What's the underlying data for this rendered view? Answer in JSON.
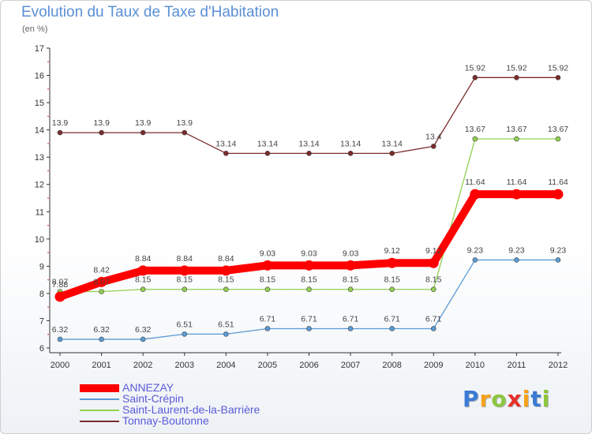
{
  "chart_data": {
    "type": "line",
    "title": "Evolution du Taux de Taxe d'Habitation",
    "subtitle": "(en %)",
    "x": [
      "2000",
      "2001",
      "2002",
      "2003",
      "2004",
      "2005",
      "2006",
      "2007",
      "2008",
      "2009",
      "2010",
      "2011",
      "2012"
    ],
    "ylim": [
      6,
      17
    ],
    "yticks": [
      6,
      7,
      8,
      9,
      10,
      11,
      12,
      13,
      14,
      15,
      16,
      17
    ],
    "grid": false,
    "legend_position": "bottom-left",
    "series": [
      {
        "name": "ANNEZAY",
        "color": "#ff0000",
        "values": [
          7.88,
          8.42,
          8.84,
          8.84,
          8.84,
          9.03,
          9.03,
          9.03,
          9.12,
          9.12,
          11.64,
          11.64,
          11.64
        ],
        "labels": [
          "7.88",
          "8.42",
          "8.84",
          "8.84",
          "8.84",
          "9.03",
          "9.03",
          "9.03",
          "9.12",
          "9.12",
          "11.64",
          "11.64",
          "11.64"
        ]
      },
      {
        "name": "Saint-Crépin",
        "color": "#5a9bd5",
        "values": [
          6.32,
          6.32,
          6.32,
          6.51,
          6.51,
          6.71,
          6.71,
          6.71,
          6.71,
          6.71,
          9.23,
          9.23,
          9.23
        ],
        "labels": [
          "6.32",
          "6.32",
          "6.32",
          "6.51",
          "6.51",
          "6.71",
          "6.71",
          "6.71",
          "6.71",
          "6.71",
          "9.23",
          "9.23",
          "9.23"
        ]
      },
      {
        "name": "Saint-Laurent-de-la-Barrière",
        "color": "#92d050",
        "values": [
          8.07,
          8.07,
          8.15,
          8.15,
          8.15,
          8.15,
          8.15,
          8.15,
          8.15,
          8.15,
          13.67,
          13.67,
          13.67
        ],
        "labels": [
          "8.07",
          "8.07",
          "8.15",
          "8.15",
          "8.15",
          "8.15",
          "8.15",
          "8.15",
          "8.15",
          "8.15",
          "13.67",
          "13.67",
          "13.67"
        ]
      },
      {
        "name": "Tonnay-Boutonne",
        "color": "#7b2b2b",
        "values": [
          13.9,
          13.9,
          13.9,
          13.9,
          13.14,
          13.14,
          13.14,
          13.14,
          13.14,
          13.4,
          15.92,
          15.92,
          15.92
        ],
        "labels": [
          "13.9",
          "13.9",
          "13.9",
          "13.9",
          "13.14",
          "13.14",
          "13.14",
          "13.14",
          "13.14",
          "13.4",
          "15.92",
          "15.92",
          "15.92"
        ]
      }
    ]
  },
  "logo": {
    "letters": [
      "P",
      "r",
      "o",
      "x",
      "i",
      "t",
      "i"
    ],
    "colors": [
      "#3a7bd5",
      "#f7a21b",
      "#8dc63f",
      "#e8302a",
      "#f7a21b",
      "#3a7bd5",
      "#8dc63f"
    ]
  }
}
